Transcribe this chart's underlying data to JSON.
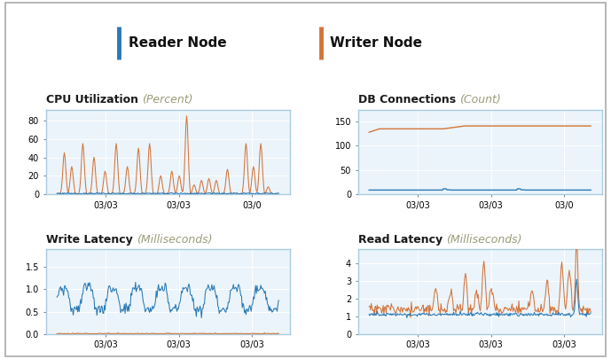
{
  "title_reader": "Reader Node",
  "title_writer": "Writer Node",
  "reader_color": "#2979B5",
  "writer_color": "#D4733A",
  "background_color": "#FFFFFF",
  "panel_bg": "#EBF4FA",
  "panel_border": "#A8CCE0",
  "subplot_titles": {
    "cpu": "CPU Utilization",
    "cpu_unit": "(Percent)",
    "db": "DB Connections",
    "db_unit": "(Count)",
    "write": "Write Latency",
    "write_unit": "(Milliseconds)",
    "read": "Read Latency",
    "read_unit": "(Milliseconds)"
  },
  "xtick_top": [
    "03/03",
    "03/03",
    "03/0"
  ],
  "xtick_bottom": [
    "03/03",
    "03/03",
    "03/03"
  ],
  "cpu_ylim": [
    0,
    92
  ],
  "cpu_yticks": [
    0,
    20,
    40,
    60,
    80
  ],
  "db_ylim": [
    0,
    175
  ],
  "db_yticks": [
    0,
    50,
    100,
    150
  ],
  "write_ylim": [
    0,
    1.9
  ],
  "write_yticks": [
    0,
    0.5,
    1.0,
    1.5
  ],
  "read_ylim": [
    0,
    4.8
  ],
  "read_yticks": [
    0,
    1,
    2,
    3,
    4
  ],
  "n_points": 300,
  "grid_color": "#FFFFFF",
  "tick_labelsize": 7,
  "title_fontsize": 9,
  "header_fontsize": 11
}
